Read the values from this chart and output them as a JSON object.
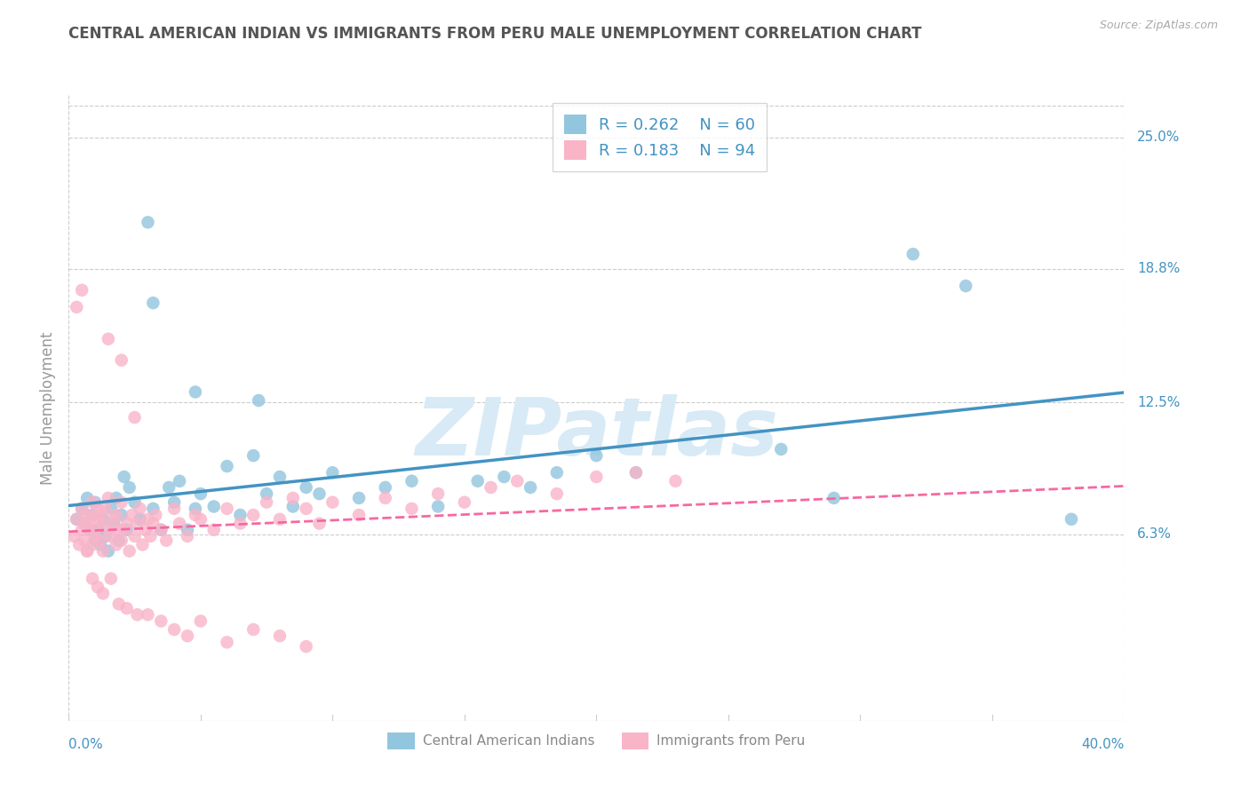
{
  "title": "CENTRAL AMERICAN INDIAN VS IMMIGRANTS FROM PERU MALE UNEMPLOYMENT CORRELATION CHART",
  "source": "Source: ZipAtlas.com",
  "ylabel": "Male Unemployment",
  "ytick_labels": [
    "25.0%",
    "18.8%",
    "12.5%",
    "6.3%"
  ],
  "ytick_values": [
    0.25,
    0.188,
    0.125,
    0.063
  ],
  "xmin": 0.0,
  "xmax": 0.4,
  "ymin": -0.025,
  "ymax": 0.27,
  "legend_r1": "0.262",
  "legend_n1": "60",
  "legend_r2": "0.183",
  "legend_n2": "94",
  "color_blue": "#92c5de",
  "color_pink": "#f9b4c8",
  "trend_blue": "#4393c3",
  "trend_pink": "#f768a1",
  "title_color": "#555555",
  "axis_label_color": "#4393c3",
  "source_color": "#aaaaaa",
  "watermark_color": "#d8eaf6",
  "grid_color": "#cccccc",
  "legend_text_color": "#4393c3",
  "ylabel_color": "#999999",
  "bottom_legend_color": "#888888",
  "N_blue": 60,
  "N_pink": 94,
  "blue_x": [
    0.003,
    0.005,
    0.006,
    0.007,
    0.008,
    0.009,
    0.01,
    0.01,
    0.011,
    0.012,
    0.013,
    0.014,
    0.015,
    0.016,
    0.017,
    0.018,
    0.019,
    0.02,
    0.021,
    0.022,
    0.023,
    0.025,
    0.027,
    0.03,
    0.032,
    0.035,
    0.038,
    0.04,
    0.042,
    0.045,
    0.048,
    0.05,
    0.055,
    0.06,
    0.065,
    0.07,
    0.075,
    0.08,
    0.085,
    0.09,
    0.095,
    0.1,
    0.11,
    0.12,
    0.13,
    0.14,
    0.155,
    0.165,
    0.175,
    0.185,
    0.2,
    0.215,
    0.27,
    0.29,
    0.32,
    0.34,
    0.38,
    0.032,
    0.048,
    0.072
  ],
  "blue_y": [
    0.07,
    0.075,
    0.068,
    0.08,
    0.065,
    0.072,
    0.078,
    0.06,
    0.065,
    0.058,
    0.07,
    0.062,
    0.055,
    0.075,
    0.068,
    0.08,
    0.06,
    0.072,
    0.09,
    0.065,
    0.085,
    0.078,
    0.07,
    0.21,
    0.075,
    0.065,
    0.085,
    0.078,
    0.088,
    0.065,
    0.075,
    0.082,
    0.076,
    0.095,
    0.072,
    0.1,
    0.082,
    0.09,
    0.076,
    0.085,
    0.082,
    0.092,
    0.08,
    0.085,
    0.088,
    0.076,
    0.088,
    0.09,
    0.085,
    0.092,
    0.1,
    0.092,
    0.103,
    0.08,
    0.195,
    0.18,
    0.07,
    0.172,
    0.13,
    0.126
  ],
  "pink_x": [
    0.002,
    0.003,
    0.004,
    0.005,
    0.005,
    0.006,
    0.006,
    0.007,
    0.007,
    0.008,
    0.008,
    0.009,
    0.009,
    0.01,
    0.01,
    0.011,
    0.011,
    0.012,
    0.012,
    0.013,
    0.013,
    0.014,
    0.015,
    0.015,
    0.016,
    0.017,
    0.018,
    0.018,
    0.019,
    0.02,
    0.02,
    0.021,
    0.022,
    0.023,
    0.024,
    0.025,
    0.026,
    0.027,
    0.028,
    0.029,
    0.03,
    0.031,
    0.032,
    0.033,
    0.035,
    0.037,
    0.04,
    0.042,
    0.045,
    0.048,
    0.05,
    0.055,
    0.06,
    0.065,
    0.07,
    0.075,
    0.08,
    0.085,
    0.09,
    0.095,
    0.1,
    0.11,
    0.12,
    0.13,
    0.14,
    0.15,
    0.16,
    0.17,
    0.185,
    0.2,
    0.215,
    0.23,
    0.003,
    0.005,
    0.007,
    0.009,
    0.011,
    0.013,
    0.016,
    0.019,
    0.022,
    0.026,
    0.03,
    0.035,
    0.04,
    0.045,
    0.05,
    0.06,
    0.07,
    0.08,
    0.09,
    0.015,
    0.02,
    0.025
  ],
  "pink_y": [
    0.062,
    0.07,
    0.058,
    0.065,
    0.075,
    0.06,
    0.068,
    0.072,
    0.055,
    0.065,
    0.07,
    0.058,
    0.078,
    0.065,
    0.062,
    0.07,
    0.075,
    0.06,
    0.072,
    0.068,
    0.055,
    0.075,
    0.065,
    0.08,
    0.062,
    0.07,
    0.058,
    0.072,
    0.065,
    0.078,
    0.06,
    0.065,
    0.068,
    0.055,
    0.072,
    0.062,
    0.068,
    0.075,
    0.058,
    0.065,
    0.07,
    0.062,
    0.068,
    0.072,
    0.065,
    0.06,
    0.075,
    0.068,
    0.062,
    0.072,
    0.07,
    0.065,
    0.075,
    0.068,
    0.072,
    0.078,
    0.07,
    0.08,
    0.075,
    0.068,
    0.078,
    0.072,
    0.08,
    0.075,
    0.082,
    0.078,
    0.085,
    0.088,
    0.082,
    0.09,
    0.092,
    0.088,
    0.17,
    0.178,
    0.055,
    0.042,
    0.038,
    0.035,
    0.042,
    0.03,
    0.028,
    0.025,
    0.025,
    0.022,
    0.018,
    0.015,
    0.022,
    0.012,
    0.018,
    0.015,
    0.01,
    0.155,
    0.145,
    0.118
  ]
}
